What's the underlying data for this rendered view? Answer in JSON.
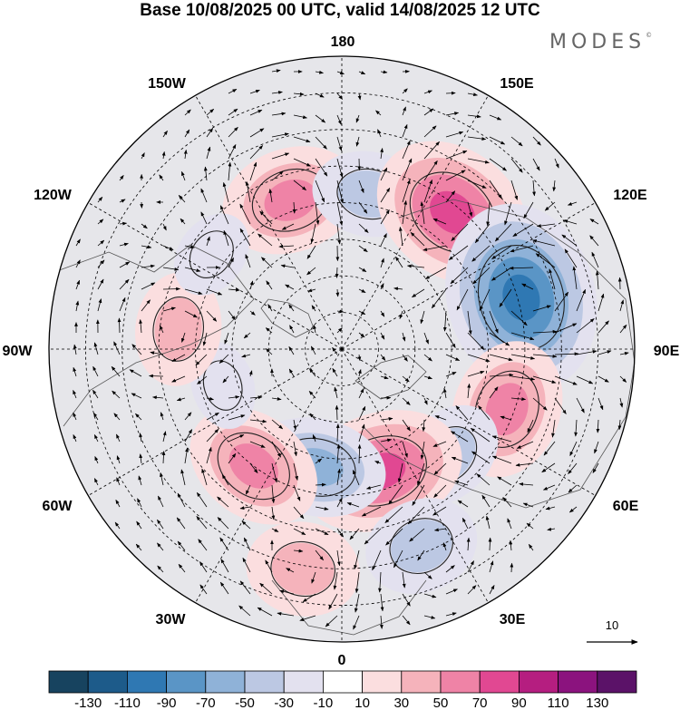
{
  "header": {
    "title": "Base 10/08/2025 00 UTC, valid 14/08/2025 12 UTC",
    "logo": "MODES",
    "logo_mark": "©"
  },
  "map": {
    "projection": "north-polar-stereographic",
    "longitude_labels": {
      "lon_180": "180",
      "lon_150e": "150E",
      "lon_120e": "120E",
      "lon_90e": "90E",
      "lon_60e": "60E",
      "lon_30e": "30E",
      "lon_0": "0",
      "lon_30w": "30W",
      "lon_60w": "60W",
      "lon_90w": "90W",
      "lon_120w": "120W",
      "lon_150w": "150W"
    },
    "reference_vector": {
      "label": "10",
      "value": 10
    },
    "anomaly_centers": [
      {
        "id": "a1",
        "sign": "positive",
        "max_value": 70,
        "lon": -161,
        "lat": 47
      },
      {
        "id": "a2",
        "sign": "negative",
        "max_value": -50,
        "lon": 170,
        "lat": 47
      },
      {
        "id": "a3",
        "sign": "positive",
        "max_value": 90,
        "lon": 141,
        "lat": 42
      },
      {
        "id": "a4",
        "sign": "negative",
        "max_value": -110,
        "lon": 106,
        "lat": 39
      },
      {
        "id": "a5",
        "sign": "positive",
        "max_value": 70,
        "lon": 70,
        "lat": 42
      },
      {
        "id": "a6",
        "sign": "negative",
        "max_value": -50,
        "lon": 45,
        "lat": 49
      },
      {
        "id": "a7",
        "sign": "positive",
        "max_value": 90,
        "lon": 18,
        "lat": 55
      },
      {
        "id": "a8",
        "sign": "negative",
        "max_value": -70,
        "lon": -12,
        "lat": 57
      },
      {
        "id": "a9",
        "sign": "positive",
        "max_value": 70,
        "lon": -37,
        "lat": 50
      },
      {
        "id": "a10",
        "sign": "negative",
        "max_value": -30,
        "lon": -73,
        "lat": 56
      },
      {
        "id": "a11",
        "sign": "positive",
        "max_value": 50,
        "lon": -97,
        "lat": 45
      },
      {
        "id": "a12",
        "sign": "negative",
        "max_value": -30,
        "lon": -126,
        "lat": 46
      },
      {
        "id": "a13",
        "sign": "negative",
        "max_value": -50,
        "lon": 22,
        "lat": 32
      },
      {
        "id": "a14",
        "sign": "positive",
        "max_value": 50,
        "lon": -10,
        "lat": 29
      }
    ]
  },
  "colorbar": {
    "labels": [
      "-130",
      "-110",
      "-90",
      "-70",
      "-50",
      "-30",
      "-10",
      "10",
      "30",
      "50",
      "70",
      "90",
      "110",
      "130"
    ],
    "colors": [
      "#17435f",
      "#1d5b8a",
      "#2f78b3",
      "#5a95c6",
      "#8fb2d8",
      "#bcc8e3",
      "#e3e1ef",
      "#ffffff",
      "#fbdedf",
      "#f5b3bb",
      "#ef83a6",
      "#e14892",
      "#b51e80",
      "#8b137e",
      "#5b1268"
    ]
  }
}
